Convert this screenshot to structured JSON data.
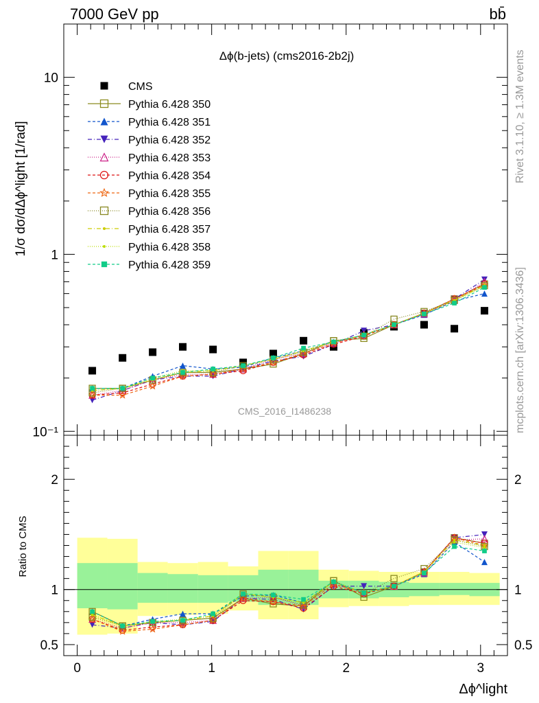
{
  "header": {
    "energy_label": "7000 GeV pp",
    "process_label": "bb̄"
  },
  "side_labels": {
    "rivet": "Rivet 3.1.10, ≥ 1.3M events",
    "mcplots": "mcplots.cern.ch [arXiv:1306.3436]"
  },
  "colors": {
    "cms": "#000000",
    "band_inner": "#99f299",
    "band_outer": "#ffff99",
    "s350": "#8b8b1e",
    "s351": "#1155cc",
    "s352": "#4422bb",
    "s353": "#cc2288",
    "s354": "#dd1111",
    "s355": "#ee6611",
    "s356": "#888822",
    "s357": "#cccc00",
    "s358": "#bbdd00",
    "s359": "#11cc88"
  },
  "chart_data": [
    {
      "type": "scatter",
      "title": "Δϕ(b-jets) (cms2016-2b2j)",
      "ylabel": "1/σ dσ/dΔϕ^light [1/rad]",
      "yscale": "log",
      "ylim": [
        0.095,
        20
      ],
      "xlim": [
        -0.1,
        3.2
      ],
      "watermark": "CMS_2016_I1486238",
      "ytick_labels": [
        "10⁻¹",
        "1",
        "10"
      ],
      "legend_position": "top-left",
      "x": [
        0.112,
        0.337,
        0.561,
        0.785,
        1.01,
        1.234,
        1.458,
        1.683,
        1.907,
        2.132,
        2.356,
        2.58,
        2.805,
        3.029
      ],
      "series": [
        {
          "name": "CMS",
          "key": "cms",
          "marker": "square-filled",
          "dash": "none",
          "values": [
            0.22,
            0.26,
            0.28,
            0.3,
            0.29,
            0.245,
            0.275,
            0.325,
            0.3,
            0.36,
            0.39,
            0.4,
            0.38,
            0.48
          ]
        },
        {
          "name": "Pythia 6.428 350",
          "key": "s350",
          "marker": "square-open",
          "dash": "solid",
          "values": [
            0.175,
            0.175,
            0.195,
            0.215,
            0.215,
            0.225,
            0.24,
            0.275,
            0.325,
            0.335,
            0.4,
            0.465,
            0.56,
            0.68
          ]
        },
        {
          "name": "Pythia 6.428 351",
          "key": "s351",
          "marker": "triangle-up-filled",
          "dash": "4,3",
          "values": [
            0.175,
            0.175,
            0.205,
            0.235,
            0.225,
            0.23,
            0.26,
            0.285,
            0.32,
            0.35,
            0.4,
            0.455,
            0.545,
            0.6
          ]
        },
        {
          "name": "Pythia 6.428 352",
          "key": "s352",
          "marker": "triangle-down-filled",
          "dash": "6,3,1,3",
          "values": [
            0.15,
            0.17,
            0.195,
            0.205,
            0.205,
            0.225,
            0.25,
            0.265,
            0.31,
            0.37,
            0.4,
            0.465,
            0.56,
            0.72
          ]
        },
        {
          "name": "Pythia 6.428 353",
          "key": "s353",
          "marker": "triangle-up-open",
          "dash": "1,2",
          "values": [
            0.16,
            0.17,
            0.195,
            0.21,
            0.21,
            0.225,
            0.255,
            0.275,
            0.315,
            0.35,
            0.4,
            0.46,
            0.55,
            0.7
          ]
        },
        {
          "name": "Pythia 6.428 354",
          "key": "s354",
          "marker": "circle-open",
          "dash": "4,3",
          "values": [
            0.16,
            0.165,
            0.185,
            0.205,
            0.21,
            0.22,
            0.245,
            0.27,
            0.31,
            0.345,
            0.4,
            0.465,
            0.56,
            0.68
          ]
        },
        {
          "name": "Pythia 6.428 355",
          "key": "s355",
          "marker": "star-open",
          "dash": "4,3",
          "values": [
            0.16,
            0.16,
            0.18,
            0.205,
            0.21,
            0.225,
            0.245,
            0.275,
            0.315,
            0.35,
            0.4,
            0.465,
            0.56,
            0.67
          ]
        },
        {
          "name": "Pythia 6.428 356",
          "key": "s356",
          "marker": "square-open",
          "dash": "1,2",
          "values": [
            0.165,
            0.175,
            0.195,
            0.215,
            0.215,
            0.235,
            0.255,
            0.28,
            0.325,
            0.345,
            0.43,
            0.475,
            0.55,
            0.665
          ]
        },
        {
          "name": "Pythia 6.428 357",
          "key": "s357",
          "marker": "dot",
          "dash": "6,3,1,3",
          "values": [
            0.17,
            0.175,
            0.195,
            0.215,
            0.22,
            0.235,
            0.255,
            0.285,
            0.32,
            0.35,
            0.4,
            0.465,
            0.55,
            0.67
          ]
        },
        {
          "name": "Pythia 6.428 358",
          "key": "s358",
          "marker": "dot",
          "dash": "1,2",
          "values": [
            0.17,
            0.175,
            0.2,
            0.22,
            0.22,
            0.235,
            0.255,
            0.285,
            0.32,
            0.35,
            0.4,
            0.465,
            0.545,
            0.66
          ]
        },
        {
          "name": "Pythia 6.428 359",
          "key": "s359",
          "marker": "square-filled-small",
          "dash": "4,3",
          "values": [
            0.175,
            0.175,
            0.2,
            0.215,
            0.225,
            0.235,
            0.26,
            0.295,
            0.32,
            0.35,
            0.4,
            0.46,
            0.53,
            0.65
          ]
        }
      ]
    },
    {
      "type": "scatter",
      "ylabel": "Ratio to CMS",
      "xlabel": "Δϕ^light",
      "ylim": [
        0.4,
        2.4
      ],
      "xlim": [
        -0.1,
        3.2
      ],
      "xtick_labels": [
        "0",
        "1",
        "2",
        "3"
      ],
      "ytick_labels": [
        "0.5",
        "1",
        "2"
      ],
      "reference_line": 1,
      "bin_edges": [
        0,
        0.224,
        0.449,
        0.673,
        0.898,
        1.122,
        1.346,
        1.571,
        1.795,
        2.02,
        2.244,
        2.468,
        2.693,
        2.917,
        3.142
      ],
      "band_inner": [
        [
          0.83,
          1.24
        ],
        [
          0.82,
          1.24
        ],
        [
          0.88,
          1.15
        ],
        [
          0.88,
          1.14
        ],
        [
          0.88,
          1.13
        ],
        [
          0.89,
          1.13
        ],
        [
          0.86,
          1.18
        ],
        [
          0.86,
          1.18
        ],
        [
          0.92,
          1.08
        ],
        [
          0.92,
          1.08
        ],
        [
          0.93,
          1.07
        ],
        [
          0.94,
          1.06
        ],
        [
          0.95,
          1.06
        ],
        [
          0.94,
          1.06
        ]
      ],
      "band_outer": [
        [
          0.59,
          1.47
        ],
        [
          0.6,
          1.46
        ],
        [
          0.76,
          1.25
        ],
        [
          0.77,
          1.24
        ],
        [
          0.78,
          1.25
        ],
        [
          0.81,
          1.21
        ],
        [
          0.73,
          1.35
        ],
        [
          0.73,
          1.35
        ],
        [
          0.84,
          1.18
        ],
        [
          0.85,
          1.17
        ],
        [
          0.85,
          1.16
        ],
        [
          0.86,
          1.16
        ],
        [
          0.86,
          1.16
        ],
        [
          0.86,
          1.15
        ]
      ],
      "x": [
        0.112,
        0.337,
        0.561,
        0.785,
        1.01,
        1.234,
        1.458,
        1.683,
        1.907,
        2.132,
        2.356,
        2.58,
        2.805,
        3.029
      ],
      "series": [
        {
          "key": "s350",
          "values": [
            0.8,
            0.67,
            0.7,
            0.72,
            0.74,
            0.92,
            0.87,
            0.85,
            1.08,
            0.93,
            1.03,
            1.16,
            1.47,
            1.42
          ]
        },
        {
          "key": "s351",
          "values": [
            0.8,
            0.67,
            0.73,
            0.78,
            0.78,
            0.94,
            0.95,
            0.88,
            1.07,
            0.97,
            1.03,
            1.14,
            1.43,
            1.25
          ]
        },
        {
          "key": "s352",
          "values": [
            0.68,
            0.65,
            0.7,
            0.68,
            0.71,
            0.92,
            0.91,
            0.82,
            1.03,
            1.03,
            1.03,
            1.16,
            1.47,
            1.5
          ]
        },
        {
          "key": "s353",
          "values": [
            0.73,
            0.65,
            0.7,
            0.7,
            0.72,
            0.92,
            0.93,
            0.85,
            1.05,
            0.97,
            1.03,
            1.15,
            1.45,
            1.46
          ]
        },
        {
          "key": "s354",
          "values": [
            0.73,
            0.63,
            0.66,
            0.68,
            0.72,
            0.9,
            0.89,
            0.83,
            1.03,
            0.96,
            1.03,
            1.16,
            1.47,
            1.42
          ]
        },
        {
          "key": "s355",
          "values": [
            0.73,
            0.62,
            0.64,
            0.68,
            0.72,
            0.92,
            0.89,
            0.85,
            1.05,
            0.97,
            1.03,
            1.16,
            1.47,
            1.4
          ]
        },
        {
          "key": "s356",
          "values": [
            0.75,
            0.67,
            0.7,
            0.72,
            0.74,
            0.96,
            0.93,
            0.86,
            1.08,
            0.96,
            1.1,
            1.19,
            1.45,
            1.39
          ]
        },
        {
          "key": "s357",
          "values": [
            0.77,
            0.67,
            0.7,
            0.72,
            0.76,
            0.96,
            0.93,
            0.88,
            1.07,
            0.97,
            1.03,
            1.16,
            1.45,
            1.4
          ]
        },
        {
          "key": "s358",
          "values": [
            0.77,
            0.67,
            0.71,
            0.73,
            0.76,
            0.96,
            0.93,
            0.88,
            1.07,
            0.97,
            1.03,
            1.16,
            1.43,
            1.38
          ]
        },
        {
          "key": "s359",
          "values": [
            0.8,
            0.67,
            0.71,
            0.72,
            0.78,
            0.96,
            0.95,
            0.91,
            1.07,
            0.97,
            1.03,
            1.15,
            1.39,
            1.35
          ]
        }
      ]
    }
  ]
}
